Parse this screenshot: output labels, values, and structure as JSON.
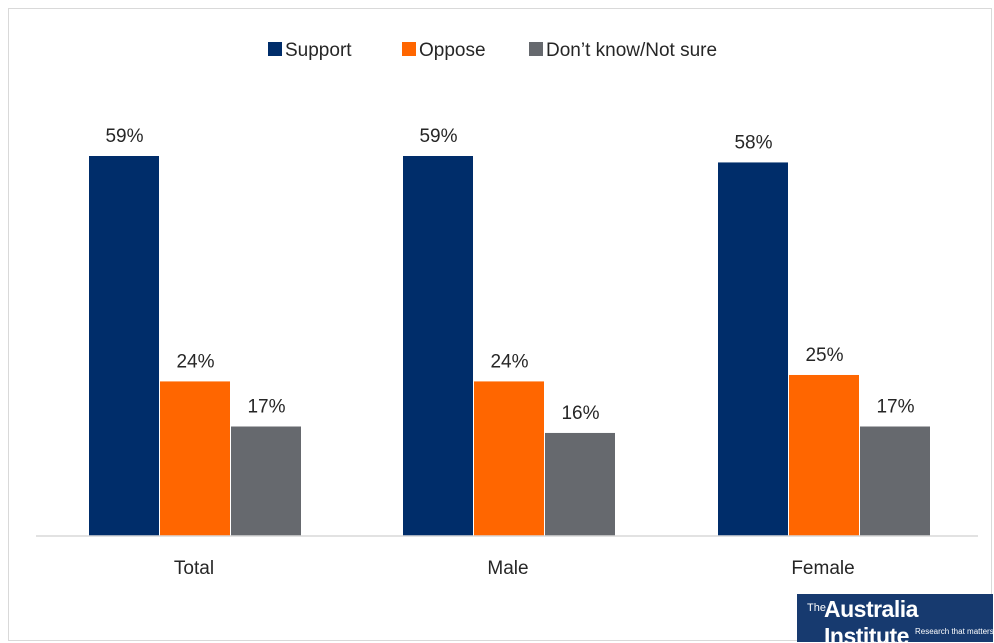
{
  "chart_data": {
    "type": "bar",
    "categories": [
      "Total",
      "Male",
      "Female"
    ],
    "series": [
      {
        "name": "Support",
        "values": [
          59,
          59,
          58
        ],
        "color": "#002d6a"
      },
      {
        "name": "Oppose",
        "values": [
          24,
          24,
          25
        ],
        "color": "#ff6600"
      },
      {
        "name": "Don’t know/Not sure",
        "values": [
          17,
          16,
          17
        ],
        "color": "#66696e"
      }
    ],
    "data_labels": [
      [
        "59%",
        "24%",
        "17%"
      ],
      [
        "59%",
        "24%",
        "16%"
      ],
      [
        "58%",
        "25%",
        "17%"
      ]
    ],
    "ylim": [
      0,
      65
    ],
    "grid": false,
    "legend": "top-center"
  },
  "logo": {
    "prefix": "The",
    "name": "Australia Institute",
    "tagline": "Research that matters"
  }
}
